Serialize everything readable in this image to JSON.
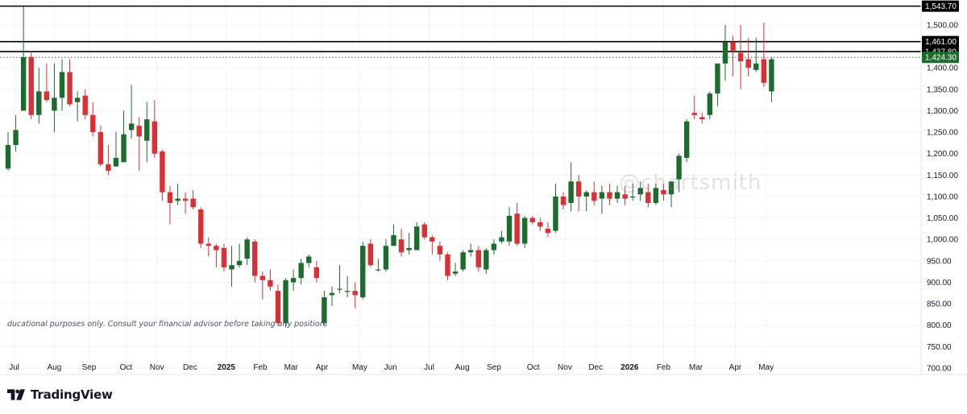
{
  "brand": {
    "name": "TradingView",
    "logo_icon": "tradingview-logo-icon"
  },
  "disclaimer": "ducational purposes only. Consult your financial advisor before taking any position)",
  "watermark": "@chartsmith",
  "colors": {
    "up": "#1e6b2e",
    "down": "#d93036",
    "wick_up": "#1e6b2e",
    "wick_down": "#d93036",
    "grid": "#f0f3fa",
    "axis_text": "#131722",
    "level_line": "#000000",
    "last_price_bg": "#1e6b2e"
  },
  "chart_data": {
    "type": "candlestick",
    "timeframe": "weekly",
    "y_axis": {
      "ticks": [
        700,
        750,
        800,
        850,
        900,
        950,
        1000,
        1050,
        1100,
        1150,
        1200,
        1250,
        1300,
        1350,
        1400,
        1500
      ],
      "tick_labels": [
        "700.00",
        "750.00",
        "800.00",
        "850.00",
        "900.00",
        "950.00",
        "1,000.00",
        "1,050.00",
        "1,100.00",
        "1,150.00",
        "1,200.00",
        "1,250.00",
        "1,300.00",
        "1,350.00",
        "1,400.00",
        "1,500.00"
      ],
      "ylim": [
        685,
        1558
      ]
    },
    "x_axis": {
      "labels": [
        {
          "text": "Jul",
          "bold": false,
          "bar": 0.8
        },
        {
          "text": "Aug",
          "bold": false,
          "bar": 6
        },
        {
          "text": "Sep",
          "bold": false,
          "bar": 10.5
        },
        {
          "text": "Oct",
          "bold": false,
          "bar": 15.3
        },
        {
          "text": "Nov",
          "bold": false,
          "bar": 19.3
        },
        {
          "text": "Dec",
          "bold": false,
          "bar": 23.6
        },
        {
          "text": "2025",
          "bold": true,
          "bar": 28.3
        },
        {
          "text": "Feb",
          "bold": false,
          "bar": 32.7
        },
        {
          "text": "Mar",
          "bold": false,
          "bar": 36.7
        },
        {
          "text": "Apr",
          "bold": false,
          "bar": 40.7
        },
        {
          "text": "May",
          "bold": false,
          "bar": 45.6
        },
        {
          "text": "Jun",
          "bold": false,
          "bar": 49.6
        },
        {
          "text": "Jul",
          "bold": false,
          "bar": 54.6
        },
        {
          "text": "Aug",
          "bold": false,
          "bar": 58.9
        },
        {
          "text": "Sep",
          "bold": false,
          "bar": 63
        },
        {
          "text": "Oct",
          "bold": false,
          "bar": 68.1
        },
        {
          "text": "Nov",
          "bold": false,
          "bar": 72.2
        },
        {
          "text": "Dec",
          "bold": false,
          "bar": 76.2
        },
        {
          "text": "2026",
          "bold": true,
          "bar": 80.6
        },
        {
          "text": "Feb",
          "bold": false,
          "bar": 85
        },
        {
          "text": "Mar",
          "bold": false,
          "bar": 89.2
        },
        {
          "text": "Apr",
          "bold": false,
          "bar": 94.3
        },
        {
          "text": "May",
          "bold": false,
          "bar": 98.3
        }
      ]
    },
    "levels": [
      {
        "value": 1543.7,
        "label": "1,543.70",
        "style": "solid"
      },
      {
        "value": 1461.0,
        "label": "1,461.00",
        "style": "solid"
      },
      {
        "value": 1437.8,
        "label": "1,437.80",
        "style": "solid"
      },
      {
        "value": 1424.3,
        "label": "1,424.30",
        "style": "dotted",
        "last_price": true
      }
    ],
    "candles": [
      [
        1165,
        1220,
        1250,
        1160
      ],
      [
        1220,
        1255,
        1290,
        1205
      ],
      [
        1300,
        1425,
        1543,
        1300
      ],
      [
        1425,
        1290,
        1440,
        1280
      ],
      [
        1290,
        1345,
        1400,
        1270
      ],
      [
        1345,
        1325,
        1410,
        1320
      ],
      [
        1300,
        1330,
        1410,
        1250
      ],
      [
        1330,
        1390,
        1420,
        1300
      ],
      [
        1390,
        1315,
        1420,
        1310
      ],
      [
        1320,
        1330,
        1345,
        1275
      ],
      [
        1335,
        1290,
        1350,
        1280
      ],
      [
        1290,
        1250,
        1320,
        1240
      ],
      [
        1250,
        1175,
        1265,
        1170
      ],
      [
        1175,
        1160,
        1220,
        1150
      ],
      [
        1170,
        1190,
        1250,
        1170
      ],
      [
        1180,
        1245,
        1300,
        1180
      ],
      [
        1255,
        1270,
        1360,
        1235
      ],
      [
        1265,
        1240,
        1285,
        1160
      ],
      [
        1230,
        1280,
        1320,
        1180
      ],
      [
        1275,
        1200,
        1325,
        1190
      ],
      [
        1205,
        1110,
        1210,
        1090
      ],
      [
        1110,
        1085,
        1125,
        1035
      ],
      [
        1090,
        1095,
        1130,
        1080
      ],
      [
        1095,
        1090,
        1110,
        1060
      ],
      [
        1095,
        1075,
        1115,
        1070
      ],
      [
        1070,
        990,
        1075,
        980
      ],
      [
        990,
        985,
        1005,
        960
      ],
      [
        985,
        975,
        990,
        935
      ],
      [
        980,
        935,
        990,
        925
      ],
      [
        930,
        940,
        985,
        890
      ],
      [
        940,
        950,
        990,
        935
      ],
      [
        955,
        1000,
        1005,
        940
      ],
      [
        995,
        915,
        1000,
        900
      ],
      [
        915,
        905,
        925,
        860
      ],
      [
        905,
        890,
        930,
        880
      ],
      [
        880,
        805,
        895,
        800
      ],
      [
        805,
        905,
        910,
        795
      ],
      [
        900,
        910,
        930,
        880
      ],
      [
        910,
        945,
        955,
        895
      ],
      [
        945,
        960,
        965,
        935
      ],
      [
        935,
        910,
        950,
        900
      ],
      [
        805,
        865,
        880,
        800
      ],
      [
        870,
        875,
        890,
        845
      ],
      [
        885,
        885,
        940,
        875
      ],
      [
        880,
        880,
        915,
        865
      ],
      [
        880,
        870,
        900,
        840
      ],
      [
        865,
        985,
        995,
        860
      ],
      [
        990,
        940,
        1000,
        935
      ],
      [
        930,
        930,
        955,
        925
      ],
      [
        930,
        985,
        1000,
        925
      ],
      [
        985,
        1010,
        1035,
        985
      ],
      [
        1000,
        970,
        1025,
        960
      ],
      [
        975,
        980,
        1015,
        965
      ],
      [
        975,
        1030,
        1040,
        975
      ],
      [
        1035,
        1005,
        1040,
        1000
      ],
      [
        1005,
        995,
        1010,
        965
      ],
      [
        985,
        965,
        995,
        950
      ],
      [
        965,
        915,
        970,
        905
      ],
      [
        920,
        925,
        945,
        915
      ],
      [
        930,
        970,
        975,
        925
      ],
      [
        970,
        975,
        990,
        960
      ],
      [
        975,
        935,
        985,
        925
      ],
      [
        930,
        975,
        980,
        920
      ],
      [
        975,
        990,
        1000,
        965
      ],
      [
        995,
        1005,
        1020,
        990
      ],
      [
        995,
        1055,
        1075,
        985
      ],
      [
        1060,
        990,
        1085,
        985
      ],
      [
        990,
        1050,
        1055,
        980
      ],
      [
        1050,
        1040,
        1055,
        1035
      ],
      [
        1040,
        1030,
        1050,
        1020
      ],
      [
        1025,
        1015,
        1040,
        1005
      ],
      [
        1020,
        1100,
        1130,
        1015
      ],
      [
        1100,
        1080,
        1110,
        1070
      ],
      [
        1085,
        1135,
        1180,
        1065
      ],
      [
        1135,
        1100,
        1150,
        1065
      ],
      [
        1100,
        1110,
        1115,
        1065
      ],
      [
        1110,
        1090,
        1135,
        1080
      ],
      [
        1095,
        1110,
        1125,
        1060
      ],
      [
        1110,
        1095,
        1130,
        1080
      ],
      [
        1095,
        1110,
        1125,
        1085
      ],
      [
        1105,
        1095,
        1125,
        1080
      ],
      [
        1100,
        1100,
        1130,
        1090
      ],
      [
        1105,
        1120,
        1135,
        1090
      ],
      [
        1110,
        1085,
        1130,
        1075
      ],
      [
        1085,
        1120,
        1130,
        1080
      ],
      [
        1115,
        1105,
        1130,
        1090
      ],
      [
        1105,
        1135,
        1135,
        1075
      ],
      [
        1140,
        1195,
        1200,
        1110
      ],
      [
        1190,
        1275,
        1280,
        1180
      ],
      [
        1295,
        1290,
        1335,
        1280
      ],
      [
        1285,
        1280,
        1295,
        1270
      ],
      [
        1290,
        1340,
        1345,
        1280
      ],
      [
        1340,
        1410,
        1410,
        1310
      ],
      [
        1410,
        1460,
        1500,
        1370
      ],
      [
        1460,
        1440,
        1475,
        1380
      ],
      [
        1435,
        1415,
        1500,
        1350
      ],
      [
        1420,
        1400,
        1470,
        1380
      ],
      [
        1395,
        1410,
        1470,
        1390
      ],
      [
        1420,
        1365,
        1505,
        1355
      ],
      [
        1345,
        1420,
        1425,
        1320
      ]
    ]
  }
}
